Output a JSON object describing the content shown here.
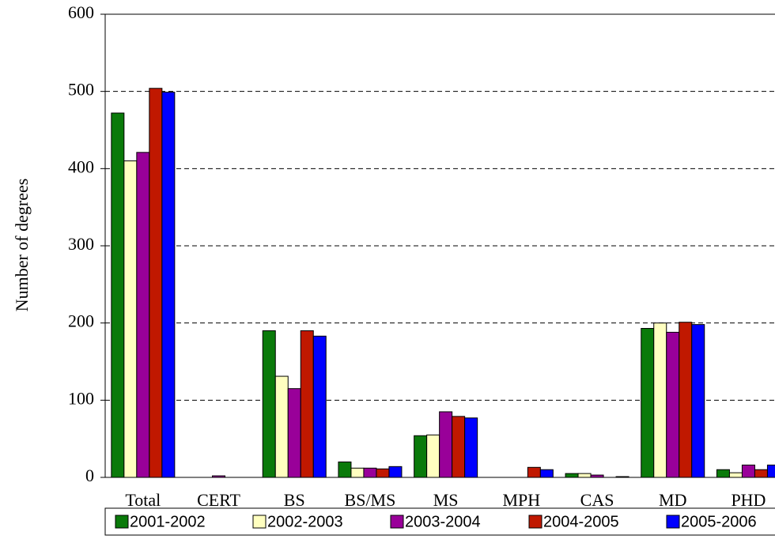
{
  "chart_data": {
    "type": "bar",
    "y_label": "Number of degrees",
    "categories": [
      "Total",
      "CERT",
      "BS",
      "BS/MS",
      "MS",
      "MPH",
      "CAS",
      "MD",
      "PHD"
    ],
    "series": [
      {
        "name": "2001-2002",
        "color": "#0a7a0a",
        "values": [
          472,
          0,
          190,
          20,
          54,
          0,
          5,
          193,
          10
        ]
      },
      {
        "name": "2002-2003",
        "color": "#ffffc0",
        "values": [
          410,
          0,
          131,
          12,
          55,
          0,
          5,
          200,
          6
        ]
      },
      {
        "name": "2003-2004",
        "color": "#990099",
        "values": [
          421,
          2,
          115,
          12,
          85,
          0,
          3,
          188,
          16
        ]
      },
      {
        "name": "2004-2005",
        "color": "#c01800",
        "values": [
          504,
          0,
          190,
          11,
          79,
          13,
          0,
          201,
          10
        ]
      },
      {
        "name": "2005-2006",
        "color": "#0000ff",
        "values": [
          499,
          0,
          183,
          14,
          77,
          10,
          1,
          198,
          16
        ]
      }
    ],
    "ylim": [
      0,
      600
    ],
    "yticks": [
      0,
      100,
      200,
      300,
      400,
      500,
      600
    ],
    "grid": true
  }
}
